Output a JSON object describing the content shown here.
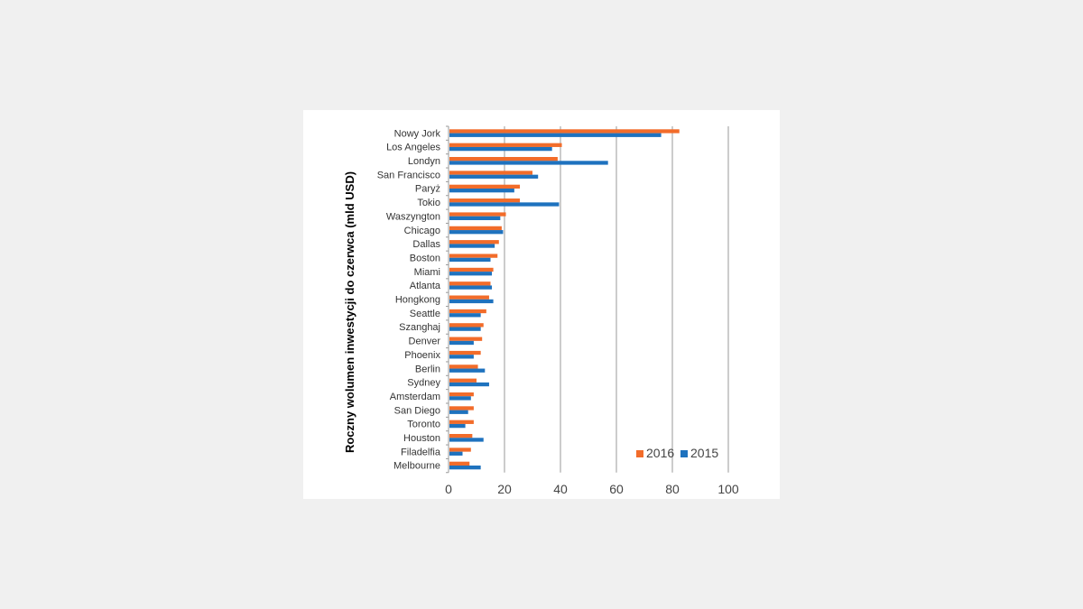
{
  "chart_data": {
    "type": "bar",
    "orientation": "horizontal",
    "title": "",
    "xlabel": "",
    "ylabel": "Roczny wolumen inwestycji do czerwca (mld USD)",
    "xlim": [
      0,
      100
    ],
    "x_ticks": [
      "0",
      "20",
      "40",
      "60",
      "80",
      "100"
    ],
    "grid": true,
    "legend_position": "bottom-right",
    "categories": [
      "Nowy Jork",
      "Los Angeles",
      "Londyn",
      "San Francisco",
      "Paryż",
      "Tokio",
      "Waszyngton",
      "Chicago",
      "Dallas",
      "Boston",
      "Miami",
      "Atlanta",
      "Hongkong",
      "Seattle",
      "Szanghaj",
      "Denver",
      "Phoenix",
      "Berlin",
      "Sydney",
      "Amsterdam",
      "San Diego",
      "Toronto",
      "Houston",
      "Filadelfia",
      "Melbourne"
    ],
    "series": [
      {
        "name": "2016",
        "color": "#f26c2a",
        "values": [
          82.5,
          40.5,
          39,
          30,
          25.5,
          25.5,
          20.5,
          19,
          18,
          17.5,
          16,
          15,
          14.5,
          13.5,
          12.5,
          12,
          11.5,
          10.5,
          10,
          9,
          9,
          9,
          8.5,
          8,
          7.5
        ]
      },
      {
        "name": "2015",
        "color": "#1e72be",
        "values": [
          76,
          37,
          57,
          32,
          23.5,
          39.5,
          18.5,
          19.5,
          16.5,
          15,
          15.5,
          15.5,
          16,
          11.5,
          11.5,
          9,
          9,
          13,
          14.5,
          8,
          7,
          6,
          12.5,
          5,
          11.5
        ]
      }
    ]
  }
}
